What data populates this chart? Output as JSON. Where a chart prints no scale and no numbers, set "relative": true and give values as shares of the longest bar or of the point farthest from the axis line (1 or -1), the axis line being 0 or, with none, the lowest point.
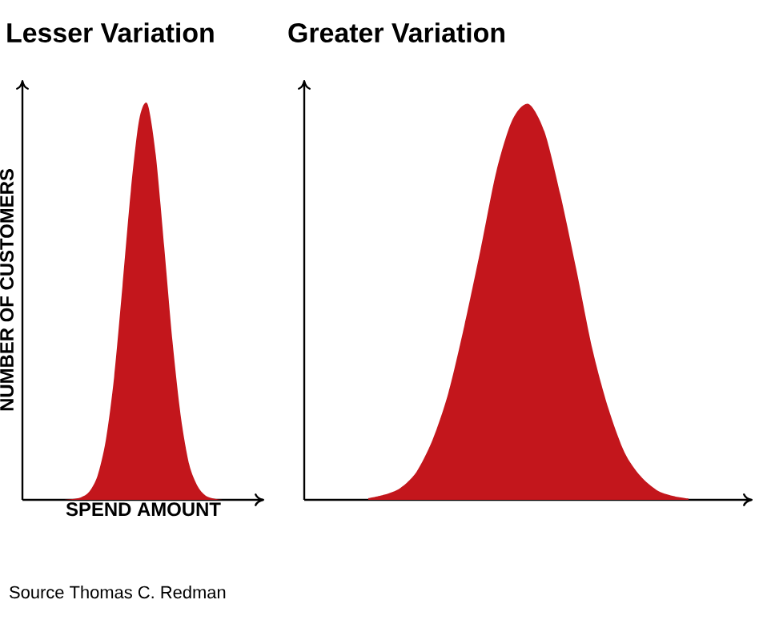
{
  "chart_data": [
    {
      "type": "area",
      "title": "Lesser Variation",
      "xlabel": "SPEND AMOUNT",
      "ylabel": "NUMBER OF CUSTOMERS",
      "relative": true,
      "color": "#c3161c",
      "categories": [
        null,
        null,
        null,
        null,
        null,
        null,
        null,
        null,
        null,
        null,
        null,
        null,
        null,
        null,
        null,
        null,
        null,
        null,
        null,
        null,
        null,
        null
      ],
      "values": [
        0,
        0,
        0.002,
        0.006,
        0.02,
        0.06,
        0.15,
        0.31,
        0.54,
        0.78,
        0.96,
        1,
        0.87,
        0.64,
        0.4,
        0.21,
        0.09,
        0.035,
        0.01,
        0.003,
        0,
        0
      ],
      "annotations": [
        "Source  Thomas C. Redman"
      ]
    },
    {
      "type": "area",
      "title": "Greater Variation",
      "relative": true,
      "color": "#c3161c",
      "categories": [
        null,
        null,
        null,
        null,
        null,
        null,
        null,
        null,
        null,
        null,
        null,
        null,
        null,
        null,
        null,
        null,
        null,
        null,
        null,
        null,
        null
      ],
      "values": [
        0.004,
        0.013,
        0.03,
        0.07,
        0.15,
        0.27,
        0.44,
        0.63,
        0.83,
        0.96,
        1,
        0.93,
        0.77,
        0.58,
        0.38,
        0.23,
        0.12,
        0.06,
        0.025,
        0.01,
        0.003
      ]
    }
  ]
}
